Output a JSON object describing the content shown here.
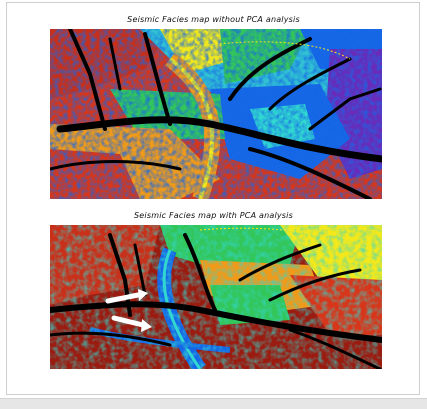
{
  "figure": {
    "top_caption": "Seismic Facies map without PCA analysis",
    "bottom_caption": "Seismic Facies map with PCA analysis"
  },
  "colors": {
    "deep_red": "#9b1b10",
    "red": "#d7361a",
    "orange": "#f09a1a",
    "yellow": "#f3e81b",
    "green": "#33c65b",
    "cyan": "#31d7d0",
    "blue": "#1667e6",
    "purple": "#6b2ab8",
    "channel_black": "#000000",
    "arrow_white": "#ffffff"
  },
  "icons": [
    "white-arrow-icon"
  ]
}
